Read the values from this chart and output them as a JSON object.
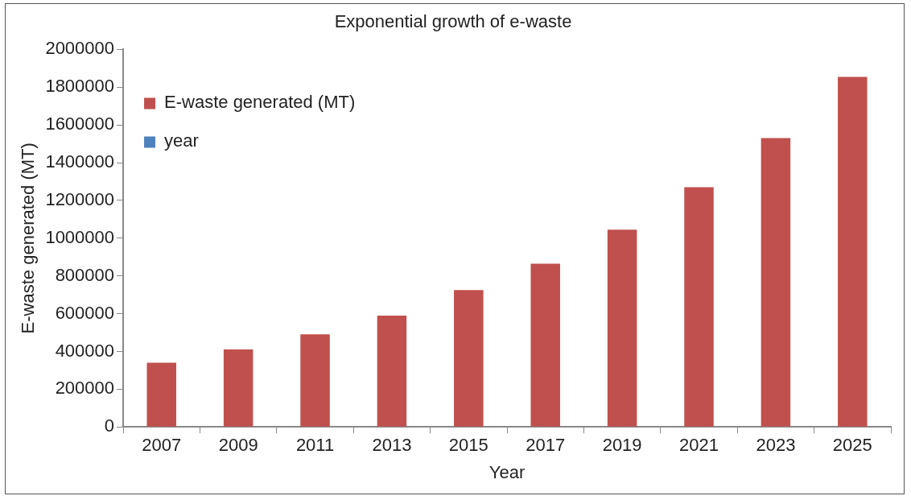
{
  "chart_data": {
    "type": "bar",
    "title": "Exponential growth of e-waste",
    "xlabel": "Year",
    "ylabel": "E-waste generated (MT)",
    "categories": [
      "2007",
      "2009",
      "2011",
      "2013",
      "2015",
      "2017",
      "2019",
      "2021",
      "2023",
      "2025"
    ],
    "series": [
      {
        "name": "E-waste generated (MT)",
        "color": "#c0504d",
        "values": [
          340000,
          410000,
          490000,
          590000,
          725000,
          865000,
          1045000,
          1270000,
          1530000,
          1855000
        ]
      },
      {
        "name": "year",
        "color": "#4f81bd",
        "values": [
          null,
          null,
          null,
          null,
          null,
          null,
          null,
          null,
          null,
          null
        ]
      }
    ],
    "ylim": [
      0,
      2000000
    ],
    "yticks": [
      0,
      200000,
      400000,
      600000,
      800000,
      1000000,
      1200000,
      1400000,
      1600000,
      1800000,
      2000000
    ],
    "grid": false,
    "legend": "top left"
  }
}
